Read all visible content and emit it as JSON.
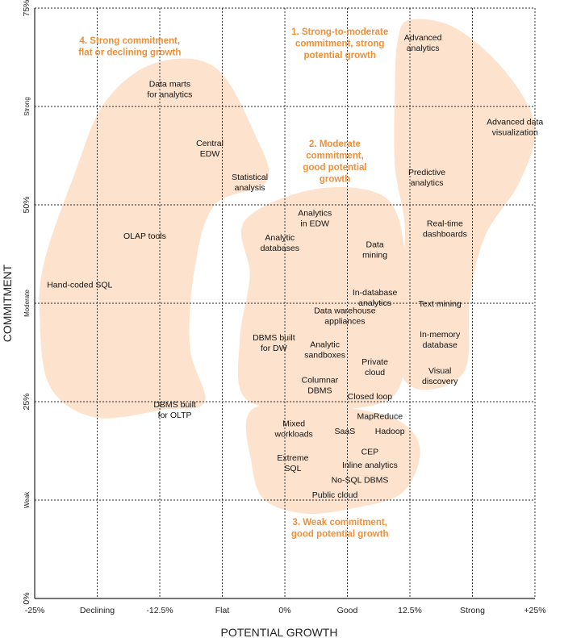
{
  "chart_data": {
    "type": "scatter",
    "title": "",
    "xlabel": "POTENTIAL GROWTH",
    "ylabel": "COMMITMENT",
    "xlim": [
      -25,
      25
    ],
    "ylim": [
      0,
      75
    ],
    "grid": true,
    "x_ticks": [
      {
        "value": -25,
        "label": "-25%"
      },
      {
        "value": -18.75,
        "label": "Declining"
      },
      {
        "value": -12.5,
        "label": "-12.5%"
      },
      {
        "value": -6.25,
        "label": "Flat"
      },
      {
        "value": 0,
        "label": "0%"
      },
      {
        "value": 6.25,
        "label": "Good"
      },
      {
        "value": 12.5,
        "label": "12.5%"
      },
      {
        "value": 18.75,
        "label": "Strong"
      },
      {
        "value": 25,
        "label": "+25%"
      }
    ],
    "y_ticks": [
      {
        "value": 0,
        "label": "0%"
      },
      {
        "value": 12.5,
        "label": "Weak"
      },
      {
        "value": 25,
        "label": "25%"
      },
      {
        "value": 37.5,
        "label": "Moderate"
      },
      {
        "value": 50,
        "label": "50%"
      },
      {
        "value": 62.5,
        "label": "Strong"
      },
      {
        "value": 75,
        "label": "75%"
      }
    ],
    "groups": [
      {
        "label": [
          "4. Strong commitment,",
          "flat or declining growth"
        ],
        "x": -15.5,
        "y": 70.5,
        "outline": [
          [
            -13,
            68
          ],
          [
            -7,
            67.5
          ],
          [
            -3,
            59
          ],
          [
            -1.8,
            53
          ],
          [
            -7,
            50
          ],
          [
            -9,
            42
          ],
          [
            -9.5,
            32
          ],
          [
            -8,
            25
          ],
          [
            -12,
            24
          ],
          [
            -19,
            23
          ],
          [
            -23.5,
            27
          ],
          [
            -24.5,
            36
          ],
          [
            -24,
            43
          ],
          [
            -21,
            54
          ],
          [
            -18,
            63
          ]
        ]
      },
      {
        "label": [
          "1. Strong-to-moderate",
          "commitment, strong",
          "potential growth"
        ],
        "x": 5.5,
        "y": 71.6,
        "outline": [
          [
            12.5,
            73.5
          ],
          [
            17,
            72.5
          ],
          [
            22,
            67
          ],
          [
            25,
            60
          ],
          [
            23.5,
            53
          ],
          [
            20,
            46
          ],
          [
            18.5,
            38
          ],
          [
            18,
            29
          ],
          [
            14,
            26.5
          ],
          [
            11.5,
            29
          ],
          [
            11.5,
            38
          ],
          [
            12,
            47
          ],
          [
            11,
            55
          ],
          [
            11,
            65
          ],
          [
            11.3,
            71
          ]
        ]
      },
      {
        "label": [
          "2. Moderate",
          "commitment,",
          "good potential",
          "growth"
        ],
        "x": 5,
        "y": 57.4,
        "outline": [
          [
            -4,
            48
          ],
          [
            3,
            52
          ],
          [
            10,
            51
          ],
          [
            12,
            44
          ],
          [
            11.5,
            38
          ],
          [
            12,
            30
          ],
          [
            10,
            25
          ],
          [
            2,
            24
          ],
          [
            -4,
            25.5
          ],
          [
            -4.5,
            33
          ],
          [
            -3.5,
            41
          ]
        ]
      },
      {
        "label": [
          "3. Weak commitment,",
          "good potential growth"
        ],
        "x": 5.5,
        "y": 9.3,
        "outline": [
          [
            -3.3,
            24
          ],
          [
            4,
            24.5
          ],
          [
            11,
            22.8
          ],
          [
            13.5,
            19
          ],
          [
            11.8,
            13.5
          ],
          [
            7,
            11.5
          ],
          [
            2,
            10.8
          ],
          [
            -2,
            12.5
          ],
          [
            -3.3,
            17
          ]
        ]
      }
    ],
    "points": [
      {
        "lines": [
          "Data marts",
          "for analytics"
        ],
        "x": -11.5,
        "y": 65
      },
      {
        "lines": [
          "Central",
          "EDW"
        ],
        "x": -7.5,
        "y": 57.5
      },
      {
        "lines": [
          "Statistical",
          "analysis"
        ],
        "x": -3.5,
        "y": 53.2
      },
      {
        "lines": [
          "OLAP tools"
        ],
        "x": -14,
        "y": 45.7
      },
      {
        "lines": [
          "Hand-coded SQL"
        ],
        "x": -20.5,
        "y": 39.5
      },
      {
        "lines": [
          "DBMS built",
          "for OLTP"
        ],
        "x": -11,
        "y": 24.3
      },
      {
        "lines": [
          "Analytics",
          "in EDW"
        ],
        "x": 3,
        "y": 48.6
      },
      {
        "lines": [
          "Analytic",
          "databases"
        ],
        "x": -0.5,
        "y": 45.5
      },
      {
        "lines": [
          "Data",
          "mining"
        ],
        "x": 9,
        "y": 44.6
      },
      {
        "lines": [
          "In-database",
          "analytics"
        ],
        "x": 9,
        "y": 38.5
      },
      {
        "lines": [
          "Data warehouse",
          "appliances"
        ],
        "x": 6,
        "y": 36.2
      },
      {
        "lines": [
          "DBMS built",
          "for DW"
        ],
        "x": -1.1,
        "y": 32.8
      },
      {
        "lines": [
          "Analytic",
          "sandboxes"
        ],
        "x": 4,
        "y": 31.9
      },
      {
        "lines": [
          "Columnar",
          "DBMS"
        ],
        "x": 3.5,
        "y": 27.4
      },
      {
        "lines": [
          "Private",
          "cloud"
        ],
        "x": 9,
        "y": 29.7
      },
      {
        "lines": [
          "Closed loop"
        ],
        "x": 8.5,
        "y": 25.3
      },
      {
        "lines": [
          "Mixed",
          "workloads"
        ],
        "x": 0.9,
        "y": 21.9
      },
      {
        "lines": [
          "MapReduce"
        ],
        "x": 9.5,
        "y": 22.8
      },
      {
        "lines": [
          "SaaS"
        ],
        "x": 6,
        "y": 20.9
      },
      {
        "lines": [
          "Hadoop"
        ],
        "x": 10.5,
        "y": 20.9
      },
      {
        "lines": [
          "Extreme",
          "SQL"
        ],
        "x": 0.8,
        "y": 17.5
      },
      {
        "lines": [
          "CEP"
        ],
        "x": 8.5,
        "y": 18.3
      },
      {
        "lines": [
          "Inline analytics"
        ],
        "x": 8.5,
        "y": 16.6
      },
      {
        "lines": [
          "No-SQL DBMS"
        ],
        "x": 7.5,
        "y": 14.7
      },
      {
        "lines": [
          "Public cloud"
        ],
        "x": 5,
        "y": 12.8
      },
      {
        "lines": [
          "Advanced",
          "analytics"
        ],
        "x": 13.8,
        "y": 70.9
      },
      {
        "lines": [
          "Advanced data",
          "visualization"
        ],
        "x": 23,
        "y": 60.2
      },
      {
        "lines": [
          "Predictive",
          "analytics"
        ],
        "x": 14.2,
        "y": 53.8
      },
      {
        "lines": [
          "Real-time",
          "dashboards"
        ],
        "x": 16,
        "y": 47.3
      },
      {
        "lines": [
          "Text mining"
        ],
        "x": 15.5,
        "y": 37.1
      },
      {
        "lines": [
          "In-memory",
          "database"
        ],
        "x": 15.5,
        "y": 33.2
      },
      {
        "lines": [
          "Visual",
          "discovery"
        ],
        "x": 15.5,
        "y": 28.6
      }
    ],
    "colors": {
      "blob": "#fde3cd",
      "group_label": "#ef8f39",
      "grid": "#222222",
      "text": "#111111"
    }
  }
}
